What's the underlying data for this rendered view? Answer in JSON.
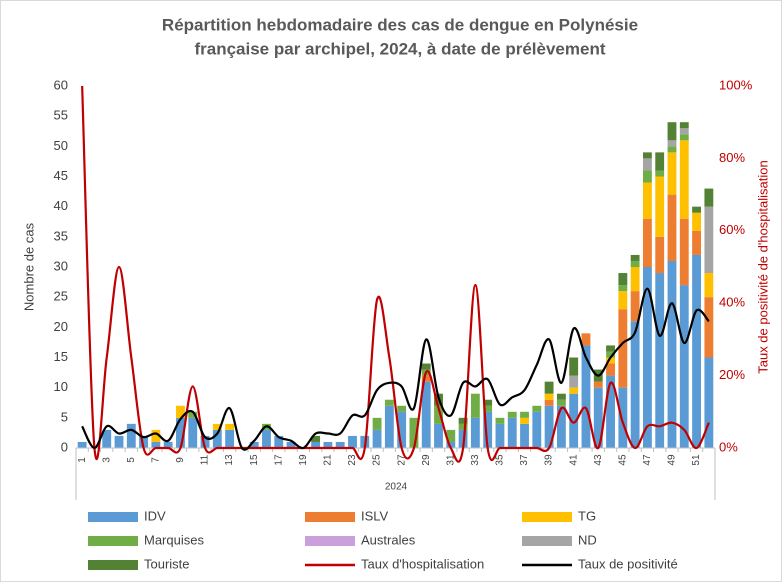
{
  "chart_data": {
    "type": "bar",
    "title": [
      "Répartition hebdomadaire des cas de dengue en Polynésie",
      "française par archipel, 2024, à date de prélèvement"
    ],
    "y_label": "Nombre de cas",
    "y2_label": "Taux de positivité de d'hospitalisation",
    "x_group_label": "2024",
    "stacked": true,
    "categories": [
      "1",
      null,
      "3",
      null,
      "5",
      null,
      "7",
      null,
      "9",
      null,
      "11",
      null,
      "13",
      null,
      "15",
      null,
      "17",
      null,
      "19",
      null,
      "21",
      null,
      "23",
      null,
      "25",
      null,
      "27",
      null,
      "29",
      null,
      "31",
      null,
      "33",
      null,
      "35",
      null,
      "37",
      null,
      "39",
      null,
      "41",
      null,
      "43",
      null,
      "45",
      null,
      "47",
      null,
      "49",
      null,
      "51",
      null
    ],
    "ylim": [
      0,
      60
    ],
    "yticks": [
      0,
      5,
      10,
      15,
      20,
      25,
      30,
      35,
      40,
      45,
      50,
      55,
      60
    ],
    "y2lim": [
      0,
      100
    ],
    "y2ticks": [
      {
        "value": 0,
        "label": "0%"
      },
      {
        "value": 20,
        "label": "20%"
      },
      {
        "value": 40,
        "label": "40%"
      },
      {
        "value": 60,
        "label": "60%"
      },
      {
        "value": 80,
        "label": "80%"
      },
      {
        "value": 100,
        "label": "100%"
      }
    ],
    "grid": false,
    "legend": "bottom",
    "series": [
      {
        "name": "IDV",
        "color": "#5b9bd5",
        "values": [
          1,
          0,
          3,
          2,
          4,
          2,
          1,
          1,
          5,
          5,
          2,
          3,
          3,
          0,
          1,
          3,
          2,
          1,
          0,
          1,
          1,
          1,
          2,
          2,
          3,
          7,
          6,
          0,
          11,
          4,
          1,
          3,
          5,
          6,
          4,
          5,
          4,
          6,
          7,
          7,
          9,
          17,
          10,
          12,
          10,
          21,
          30,
          29,
          31,
          27,
          32,
          15
        ]
      },
      {
        "name": "ISLV",
        "color": "#ed7d31",
        "values": [
          0,
          0,
          0,
          0,
          0,
          0,
          0,
          0,
          0,
          0,
          0,
          0,
          0,
          0,
          0,
          0,
          0,
          0,
          0,
          0,
          0,
          0,
          0,
          0,
          0,
          0,
          0,
          0,
          1,
          0,
          0,
          0,
          0,
          0,
          0,
          0,
          0,
          0,
          1,
          0,
          0,
          2,
          1,
          2,
          13,
          5,
          8,
          6,
          11,
          11,
          4,
          10
        ]
      },
      {
        "name": "TG",
        "color": "#ffc000",
        "values": [
          0,
          0,
          0,
          0,
          0,
          0,
          2,
          0,
          2,
          0,
          0,
          1,
          1,
          0,
          0,
          0,
          0,
          0,
          0,
          0,
          0,
          0,
          0,
          0,
          0,
          0,
          0,
          0,
          0,
          0,
          0,
          0,
          0,
          0,
          0,
          0,
          1,
          0,
          1,
          0,
          1,
          0,
          0,
          1,
          3,
          4,
          6,
          10,
          7,
          13,
          3,
          4
        ]
      },
      {
        "name": "Marquises",
        "color": "#70ad47",
        "values": [
          0,
          0,
          0,
          0,
          0,
          0,
          0,
          0,
          0,
          1,
          0,
          0,
          0,
          0,
          0,
          1,
          0,
          0,
          0,
          0,
          0,
          0,
          0,
          0,
          2,
          1,
          1,
          5,
          1,
          3,
          2,
          1,
          4,
          1,
          1,
          1,
          1,
          1,
          0,
          1,
          0,
          0,
          0,
          1,
          1,
          1,
          2,
          1,
          1,
          1,
          0,
          0
        ]
      },
      {
        "name": "Australes",
        "color": "#c9a0dc",
        "values": [
          0,
          0,
          0,
          0,
          0,
          0,
          0,
          0,
          0,
          0,
          0,
          0,
          0,
          0,
          0,
          0,
          0,
          0,
          0,
          0,
          0,
          0,
          0,
          0,
          0,
          0,
          0,
          0,
          0,
          0,
          0,
          0,
          0,
          0,
          0,
          0,
          0,
          0,
          0,
          0,
          0,
          0,
          0,
          0,
          0,
          0,
          0,
          0,
          0,
          0,
          0,
          0
        ]
      },
      {
        "name": "ND",
        "color": "#a5a5a5",
        "values": [
          0,
          0,
          0,
          0,
          0,
          0,
          0,
          0,
          0,
          0,
          0,
          0,
          0,
          0,
          0,
          0,
          0,
          0,
          0,
          0,
          0,
          0,
          0,
          0,
          0,
          0,
          0,
          0,
          0,
          0,
          0,
          0,
          0,
          0,
          0,
          0,
          0,
          0,
          0,
          0,
          2,
          0,
          0,
          0,
          0,
          0,
          2,
          0,
          1,
          1,
          0,
          11
        ]
      },
      {
        "name": "Touriste",
        "color": "#548235",
        "values": [
          0,
          0,
          0,
          0,
          0,
          0,
          0,
          0,
          0,
          0,
          0,
          0,
          0,
          0,
          0,
          0,
          0,
          0,
          0,
          1,
          0,
          0,
          0,
          0,
          0,
          0,
          0,
          0,
          1,
          2,
          0,
          1,
          0,
          1,
          0,
          0,
          0,
          0,
          2,
          1,
          3,
          0,
          2,
          1,
          2,
          1,
          1,
          3,
          3,
          1,
          1,
          3
        ]
      },
      {
        "name": "Taux d'hospitalisation",
        "type": "line",
        "axis": "y2",
        "color": "#c00000",
        "values": [
          100,
          0,
          25,
          50,
          25,
          0,
          0,
          0,
          0,
          17,
          0,
          0,
          0,
          0,
          0,
          0,
          0,
          0,
          0,
          0,
          0,
          0,
          0,
          0,
          41,
          25,
          0,
          0,
          21,
          11,
          0,
          0,
          45,
          0,
          0,
          0,
          0,
          0,
          0,
          11,
          7,
          11,
          0,
          18,
          7,
          0,
          6,
          6,
          7,
          5,
          0,
          7
        ]
      },
      {
        "name": "Taux de positivité",
        "type": "line",
        "axis": "y2",
        "color": "#000000",
        "values": [
          6,
          0,
          6,
          4,
          5,
          3,
          4,
          2,
          8,
          10,
          3,
          4,
          11,
          0,
          2,
          6,
          3,
          2,
          0,
          4,
          4,
          4,
          9,
          9,
          16,
          18,
          17,
          11,
          30,
          14,
          9,
          18,
          17,
          19,
          12,
          14,
          16,
          23,
          30,
          18,
          33,
          25,
          20,
          25,
          29,
          32,
          44,
          31,
          40,
          29,
          38,
          35
        ]
      }
    ]
  }
}
